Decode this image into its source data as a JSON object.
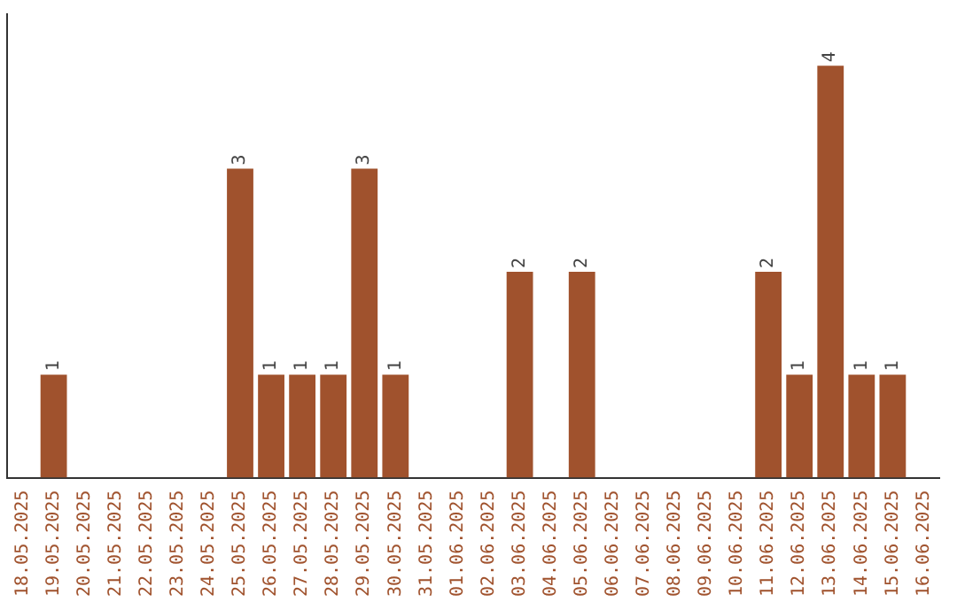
{
  "chart_data": {
    "type": "bar",
    "categories": [
      "18.05.2025",
      "19.05.2025",
      "20.05.2025",
      "21.05.2025",
      "22.05.2025",
      "23.05.2025",
      "24.05.2025",
      "25.05.2025",
      "26.05.2025",
      "27.05.2025",
      "28.05.2025",
      "29.05.2025",
      "30.05.2025",
      "31.05.2025",
      "01.06.2025",
      "02.06.2025",
      "03.06.2025",
      "04.06.2025",
      "05.06.2025",
      "06.06.2025",
      "07.06.2025",
      "08.06.2025",
      "09.06.2025",
      "10.06.2025",
      "11.06.2025",
      "12.06.2025",
      "13.06.2025",
      "14.06.2025",
      "15.06.2025",
      "16.06.2025"
    ],
    "values": [
      0,
      1,
      0,
      0,
      0,
      0,
      0,
      3,
      1,
      1,
      1,
      3,
      1,
      0,
      0,
      0,
      2,
      0,
      2,
      0,
      0,
      0,
      0,
      0,
      2,
      1,
      4,
      1,
      1,
      0
    ],
    "value_labels": [
      null,
      "1",
      null,
      null,
      null,
      null,
      null,
      "3",
      "1",
      "1",
      "1",
      "3",
      "1",
      null,
      null,
      null,
      "2",
      null,
      "2",
      null,
      null,
      null,
      null,
      null,
      "2",
      "1",
      "4",
      "1",
      "1",
      null
    ],
    "color": "#a0522d",
    "grid": false,
    "legend": false
  }
}
